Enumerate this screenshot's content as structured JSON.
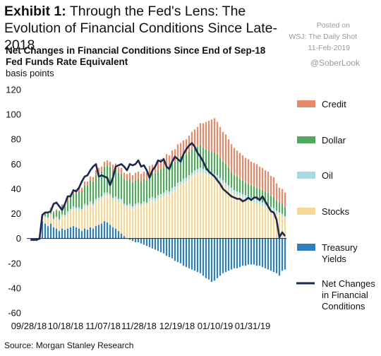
{
  "header": {
    "exhibit_label": "Exhibit 1:",
    "exhibit_title": "Through the Fed's Lens: The Evolution of Financial Conditions Since Late-2018",
    "posted_on": "Posted on",
    "publisher": "WSJ: The Daily Shot",
    "date": "11-Feb-2019",
    "handle": "@SoberLook"
  },
  "footer": {
    "source": "Source: Morgan Stanley Research"
  },
  "colors": {
    "credit": "#e8896a",
    "dollar": "#52a85e",
    "oil": "#a8d9e2",
    "stocks": "#f5d79a",
    "treasury": "#2f7fbf",
    "net": "#1b2a4e"
  },
  "chart_data": {
    "type": "bar",
    "stacked": true,
    "title": "Net Changes in Financial Conditions Since End of Sep-18",
    "subtitle": "Fed Funds Rate Equivalent",
    "ylabel": "basis points",
    "xlabel": "",
    "ylim": [
      -60,
      120
    ],
    "yticks": [
      -60,
      -40,
      -20,
      0,
      20,
      40,
      60,
      80,
      100,
      120
    ],
    "x_tick_labels": [
      "09/28/18",
      "10/18/18",
      "11/07/18",
      "11/28/18",
      "12/19/18",
      "01/10/19",
      "01/31/19"
    ],
    "legend_position": "right",
    "grid": false,
    "series": [
      {
        "name": "Credit",
        "key": "credit",
        "values": [
          0,
          0,
          0,
          0,
          0.5,
          0.5,
          1,
          1,
          1,
          1,
          1,
          1,
          1.5,
          2,
          2,
          2,
          2.5,
          3,
          3,
          3,
          3,
          3,
          3.5,
          4,
          4,
          4,
          4,
          4,
          4,
          4.5,
          4.5,
          4.5,
          5,
          5,
          5,
          5,
          6,
          6,
          6,
          6,
          6,
          6,
          7,
          7,
          7,
          8,
          8,
          8,
          9,
          9,
          10,
          10,
          11,
          11,
          12,
          12,
          13,
          14,
          15,
          16,
          18,
          20,
          22,
          24,
          26,
          28,
          26,
          25,
          24,
          24,
          23,
          22,
          22,
          21,
          21,
          20,
          20,
          20,
          19,
          19,
          19,
          18,
          18,
          17,
          17,
          16,
          16,
          14,
          12,
          12,
          12
        ]
      },
      {
        "name": "Dollar",
        "key": "dollar",
        "values": [
          0,
          0,
          0,
          0,
          1,
          2,
          3,
          4,
          5,
          5,
          6,
          7,
          8,
          9,
          10,
          10,
          12,
          13,
          14,
          15,
          16,
          17,
          18,
          19,
          20,
          20,
          21,
          22,
          22,
          22,
          22,
          21,
          20,
          20,
          20,
          20,
          19,
          19,
          19,
          18,
          18,
          18,
          19,
          19,
          20,
          20,
          20,
          20,
          20,
          20,
          20,
          20,
          20,
          20,
          19,
          19,
          19,
          19,
          18,
          18,
          18,
          17,
          17,
          17,
          17,
          17,
          17,
          16,
          15,
          15,
          14,
          13,
          12,
          12,
          11,
          11,
          10,
          10,
          10,
          10,
          10,
          10,
          10,
          10,
          10,
          9,
          9,
          8,
          8,
          8,
          7
        ]
      },
      {
        "name": "Oil",
        "key": "oil",
        "values": [
          0,
          0,
          0,
          0,
          0.5,
          1,
          1,
          1,
          1,
          1.5,
          1.5,
          1.5,
          2,
          2,
          2,
          2,
          2,
          2,
          2,
          2,
          2,
          2,
          2,
          2,
          2,
          2,
          2,
          2,
          2,
          2,
          2,
          2,
          2,
          2,
          2,
          2,
          2,
          2,
          2,
          2,
          2,
          2,
          2.5,
          2.5,
          2.5,
          3,
          3,
          3,
          3,
          3,
          3,
          3,
          3,
          3,
          3,
          3,
          3,
          3,
          3,
          3,
          3,
          3,
          3,
          3,
          3,
          3,
          3,
          3,
          3,
          3,
          3,
          3,
          3,
          3,
          3,
          3,
          3,
          3,
          3,
          3,
          3,
          3,
          3,
          3,
          3,
          2.5,
          2.5,
          2.5,
          2,
          2,
          2
        ]
      },
      {
        "name": "Stocks",
        "key": "stocks",
        "values": [
          0,
          0,
          0,
          0,
          4,
          5,
          6,
          7,
          6,
          8,
          8,
          10,
          10,
          12,
          13,
          14,
          14,
          15,
          16,
          18,
          18,
          19,
          18,
          20,
          20,
          20,
          21,
          22,
          23,
          22,
          24,
          24,
          26,
          24,
          25,
          26,
          24,
          26,
          27,
          26,
          28,
          27,
          30,
          31,
          30,
          32,
          33,
          34,
          36,
          35,
          38,
          39,
          42,
          43,
          45,
          46,
          48,
          50,
          52,
          53,
          54,
          53,
          52,
          51,
          50,
          49,
          48,
          46,
          44,
          42,
          40,
          38,
          36,
          35,
          34,
          33,
          32,
          31,
          30,
          29,
          28,
          27,
          26,
          25,
          24,
          23,
          22,
          20,
          19,
          18,
          16
        ]
      },
      {
        "name": "Treasury Yields",
        "key": "treasury",
        "values": [
          -2,
          -2,
          -2,
          -1,
          14,
          12,
          10,
          12,
          9,
          8,
          6,
          8,
          7,
          8,
          9,
          10,
          9,
          8,
          6,
          8,
          7,
          9,
          8,
          10,
          11,
          12,
          14,
          13,
          11,
          9,
          8,
          6,
          4,
          2,
          0,
          -1,
          -2,
          -3,
          -3,
          -4,
          -5,
          -6,
          -7,
          -8,
          -9,
          -10,
          -11,
          -12,
          -14,
          -15,
          -16,
          -18,
          -19,
          -20,
          -22,
          -23,
          -24,
          -25,
          -26,
          -27,
          -28,
          -30,
          -32,
          -33,
          -35,
          -34,
          -32,
          -30,
          -28,
          -27,
          -26,
          -25,
          -24,
          -24,
          -23,
          -22,
          -22,
          -21,
          -21,
          -21,
          -22,
          -22,
          -23,
          -24,
          -25,
          -26,
          -27,
          -28,
          -30,
          -26,
          -25
        ]
      },
      {
        "name": "Net Changes in Financial Conditions",
        "key": "net",
        "type": "line",
        "values": [
          -1,
          -1,
          -1,
          0,
          19,
          21,
          21,
          22,
          28,
          29,
          26,
          23,
          28,
          34,
          34,
          39,
          38,
          41,
          46,
          50,
          51,
          55,
          58,
          60,
          50,
          51,
          50,
          49,
          43,
          49,
          58,
          59,
          60,
          58,
          55,
          60,
          59,
          60,
          63,
          58,
          59,
          55,
          49,
          55,
          58,
          63,
          62,
          64,
          58,
          56,
          62,
          66,
          64,
          62,
          68,
          72,
          75,
          77,
          74,
          69,
          66,
          62,
          57,
          54,
          52,
          50,
          47,
          44,
          40,
          38,
          36,
          34,
          33,
          32,
          32,
          30,
          31,
          33,
          31,
          33,
          33,
          31,
          34,
          30,
          26,
          22,
          21,
          15,
          1,
          5,
          2
        ]
      }
    ]
  }
}
